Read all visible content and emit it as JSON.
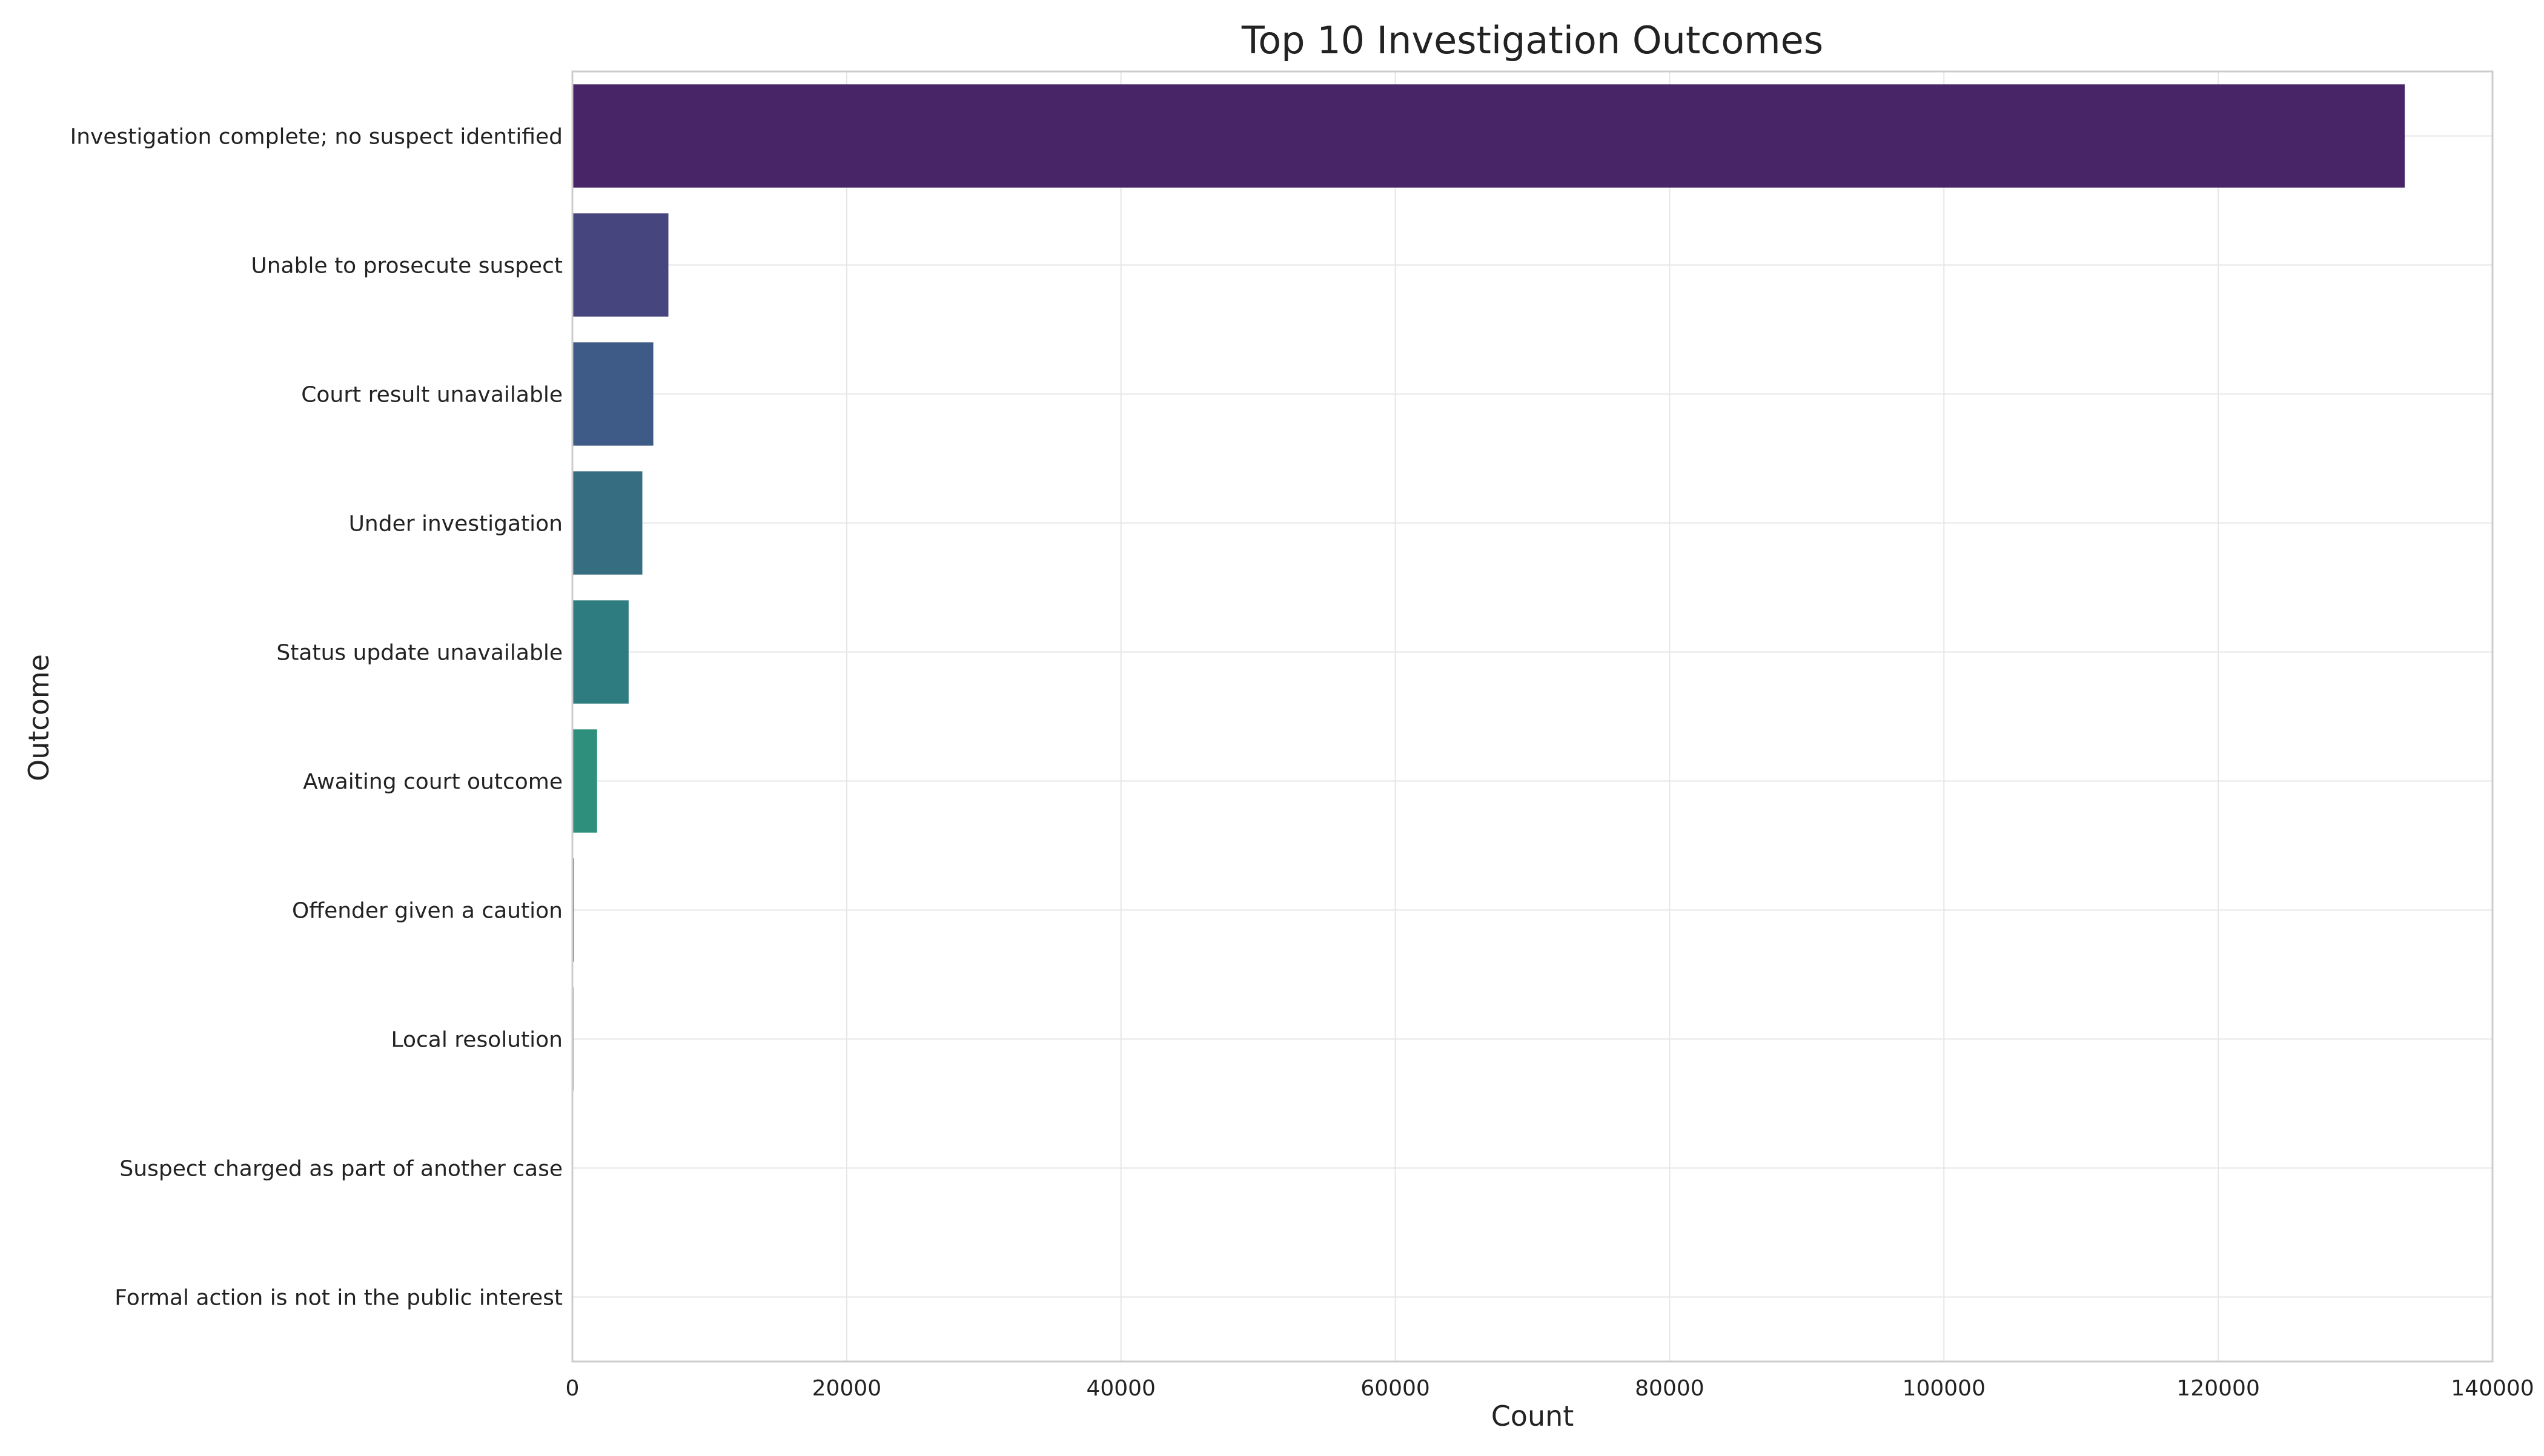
{
  "chart_data": {
    "type": "bar",
    "orientation": "horizontal",
    "title": "Top 10 Investigation Outcomes",
    "xlabel": "Count",
    "ylabel": "Outcome",
    "xlim": [
      0,
      140000
    ],
    "xticks": [
      0,
      20000,
      40000,
      60000,
      80000,
      100000,
      120000,
      140000
    ],
    "grid": true,
    "categories": [
      "Investigation complete; no suspect identified",
      "Unable to prosecute suspect",
      "Court result unavailable",
      "Under investigation",
      "Status update unavailable",
      "Awaiting court outcome",
      "Offender given a caution",
      "Local resolution",
      "Suspect charged as part of another case",
      "Formal action is not in the public interest"
    ],
    "values": [
      133600,
      7000,
      5900,
      5100,
      4100,
      1800,
      120,
      90,
      60,
      40
    ],
    "colors": [
      "#482566",
      "#46457e",
      "#3e5a86",
      "#376d80",
      "#2f7c80",
      "#2d8f7c",
      "#2fa273",
      "#58b55f",
      "#8ecb48",
      "#c9db3a"
    ]
  }
}
